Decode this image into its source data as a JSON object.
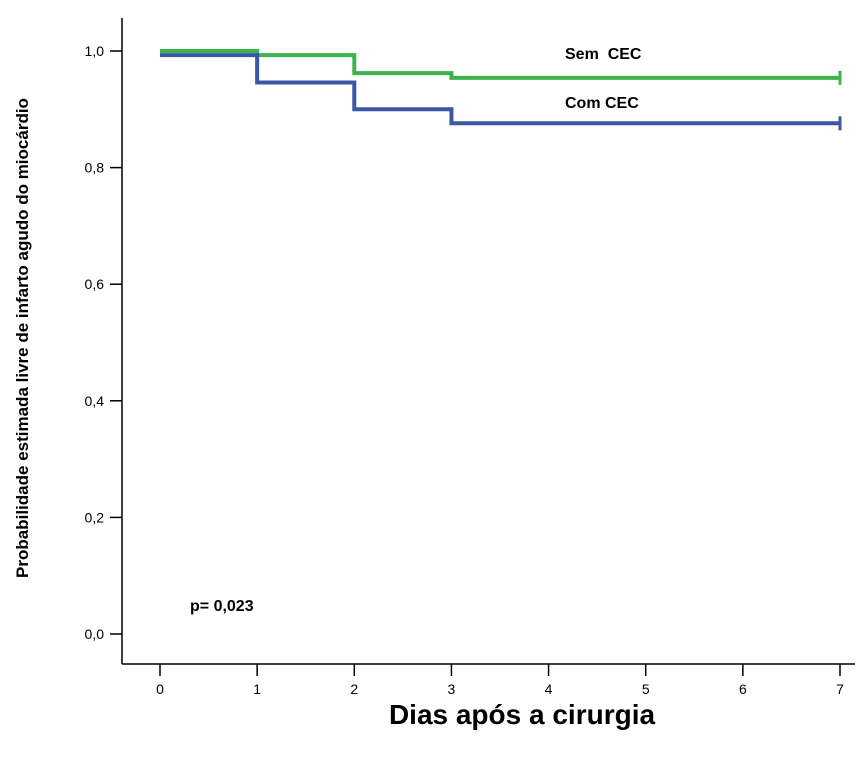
{
  "chart_data": {
    "type": "line",
    "step": true,
    "xlabel": "Dias após a cirurgia",
    "ylabel": "Probabilidade estimada livre de infarto agudo do miocárdio",
    "xlim": [
      0,
      7
    ],
    "ylim": [
      0,
      1
    ],
    "xticks": [
      0,
      1,
      2,
      3,
      4,
      5,
      6,
      7
    ],
    "xtick_labels": [
      "0",
      "1",
      "2",
      "3",
      "4",
      "5",
      "6",
      "7"
    ],
    "yticks": [
      0,
      0.2,
      0.4,
      0.6,
      0.8,
      1.0
    ],
    "ytick_labels": [
      "0,0",
      "0,2",
      "0,4",
      "0,6",
      "0,8",
      "1,0"
    ],
    "grid": false,
    "series": [
      {
        "name": "Sem  CEC",
        "color": "#3cb44b",
        "x": [
          0,
          1,
          2,
          3,
          7
        ],
        "y": [
          1.0,
          0.993,
          0.962,
          0.954,
          0.954
        ],
        "censor_marks": [
          7
        ]
      },
      {
        "name": "Com CEC",
        "color": "#3a56a5",
        "x": [
          0,
          1,
          2,
          3,
          7
        ],
        "y": [
          0.993,
          0.946,
          0.9,
          0.876,
          0.876
        ],
        "censor_marks": [
          7
        ]
      }
    ],
    "annotations": [
      {
        "text": "p= 0,023"
      }
    ]
  }
}
